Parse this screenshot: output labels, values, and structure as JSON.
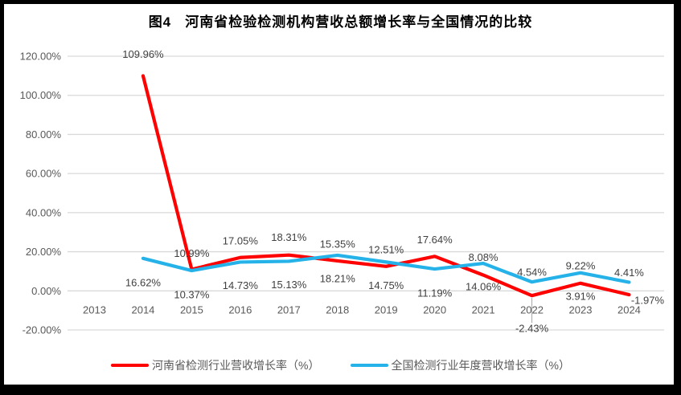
{
  "title": "图4   河南省检验检测机构营收总额增长率与全国情况的比较",
  "chart_data": {
    "type": "line",
    "categories": [
      "2013",
      "2014",
      "2015",
      "2016",
      "2017",
      "2018",
      "2019",
      "2020",
      "2021",
      "2022",
      "2023",
      "2024"
    ],
    "series": [
      {
        "id": "henan",
        "name": "河南省检测行业营收增长率（%）",
        "color": "#FF0000",
        "values": [
          null,
          109.96,
          10.99,
          17.05,
          18.31,
          15.35,
          12.51,
          17.64,
          8.08,
          -2.43,
          3.91,
          -1.97
        ],
        "labels": [
          "",
          "109.96%",
          "10.99%",
          "17.05%",
          "18.31%",
          "15.35%",
          "12.51%",
          "17.64%",
          "8.08%",
          "-2.43%",
          "3.91%",
          "-1.97%"
        ],
        "label_dy": [
          null,
          -27,
          -20,
          -21,
          -22,
          -21,
          -21,
          -21,
          -22,
          41,
          16,
          7
        ],
        "label_dx": [
          null,
          0,
          0,
          0,
          0,
          0,
          0,
          0,
          0,
          0,
          0,
          23
        ]
      },
      {
        "id": "national",
        "name": "全国检测行业年度营收增长率（%）",
        "color": "#25B2E8",
        "values": [
          null,
          16.62,
          10.37,
          14.73,
          15.13,
          18.21,
          14.75,
          11.19,
          14.06,
          4.54,
          9.22,
          4.41
        ],
        "labels": [
          "",
          "16.62%",
          "10.37%",
          "14.73%",
          "15.13%",
          "18.21%",
          "14.75%",
          "11.19%",
          "14.06%",
          "4.54%",
          "9.22%",
          "4.41%"
        ],
        "label_dy": [
          null,
          30,
          30,
          29,
          29,
          29,
          29,
          30,
          29,
          -12,
          -9,
          -12
        ],
        "label_dx": [
          null,
          0,
          0,
          0,
          0,
          0,
          0,
          0,
          0,
          0,
          0,
          0
        ]
      }
    ],
    "y_ticks": [
      "120.00%",
      "100.00%",
      "80.00%",
      "60.00%",
      "40.00%",
      "20.00%",
      "0.00%",
      "-20.00%"
    ],
    "y_tick_values": [
      120,
      100,
      80,
      60,
      40,
      20,
      0,
      -20
    ],
    "ylim": [
      -20,
      120
    ],
    "grid": true,
    "legend_position": "bottom",
    "leader_line": {
      "series": 0,
      "index": 9
    },
    "colors": {
      "gridline": "#D9D9D9",
      "axis_label": "#595959",
      "data_label": "#404040",
      "leader": "#A6A6A6"
    }
  }
}
